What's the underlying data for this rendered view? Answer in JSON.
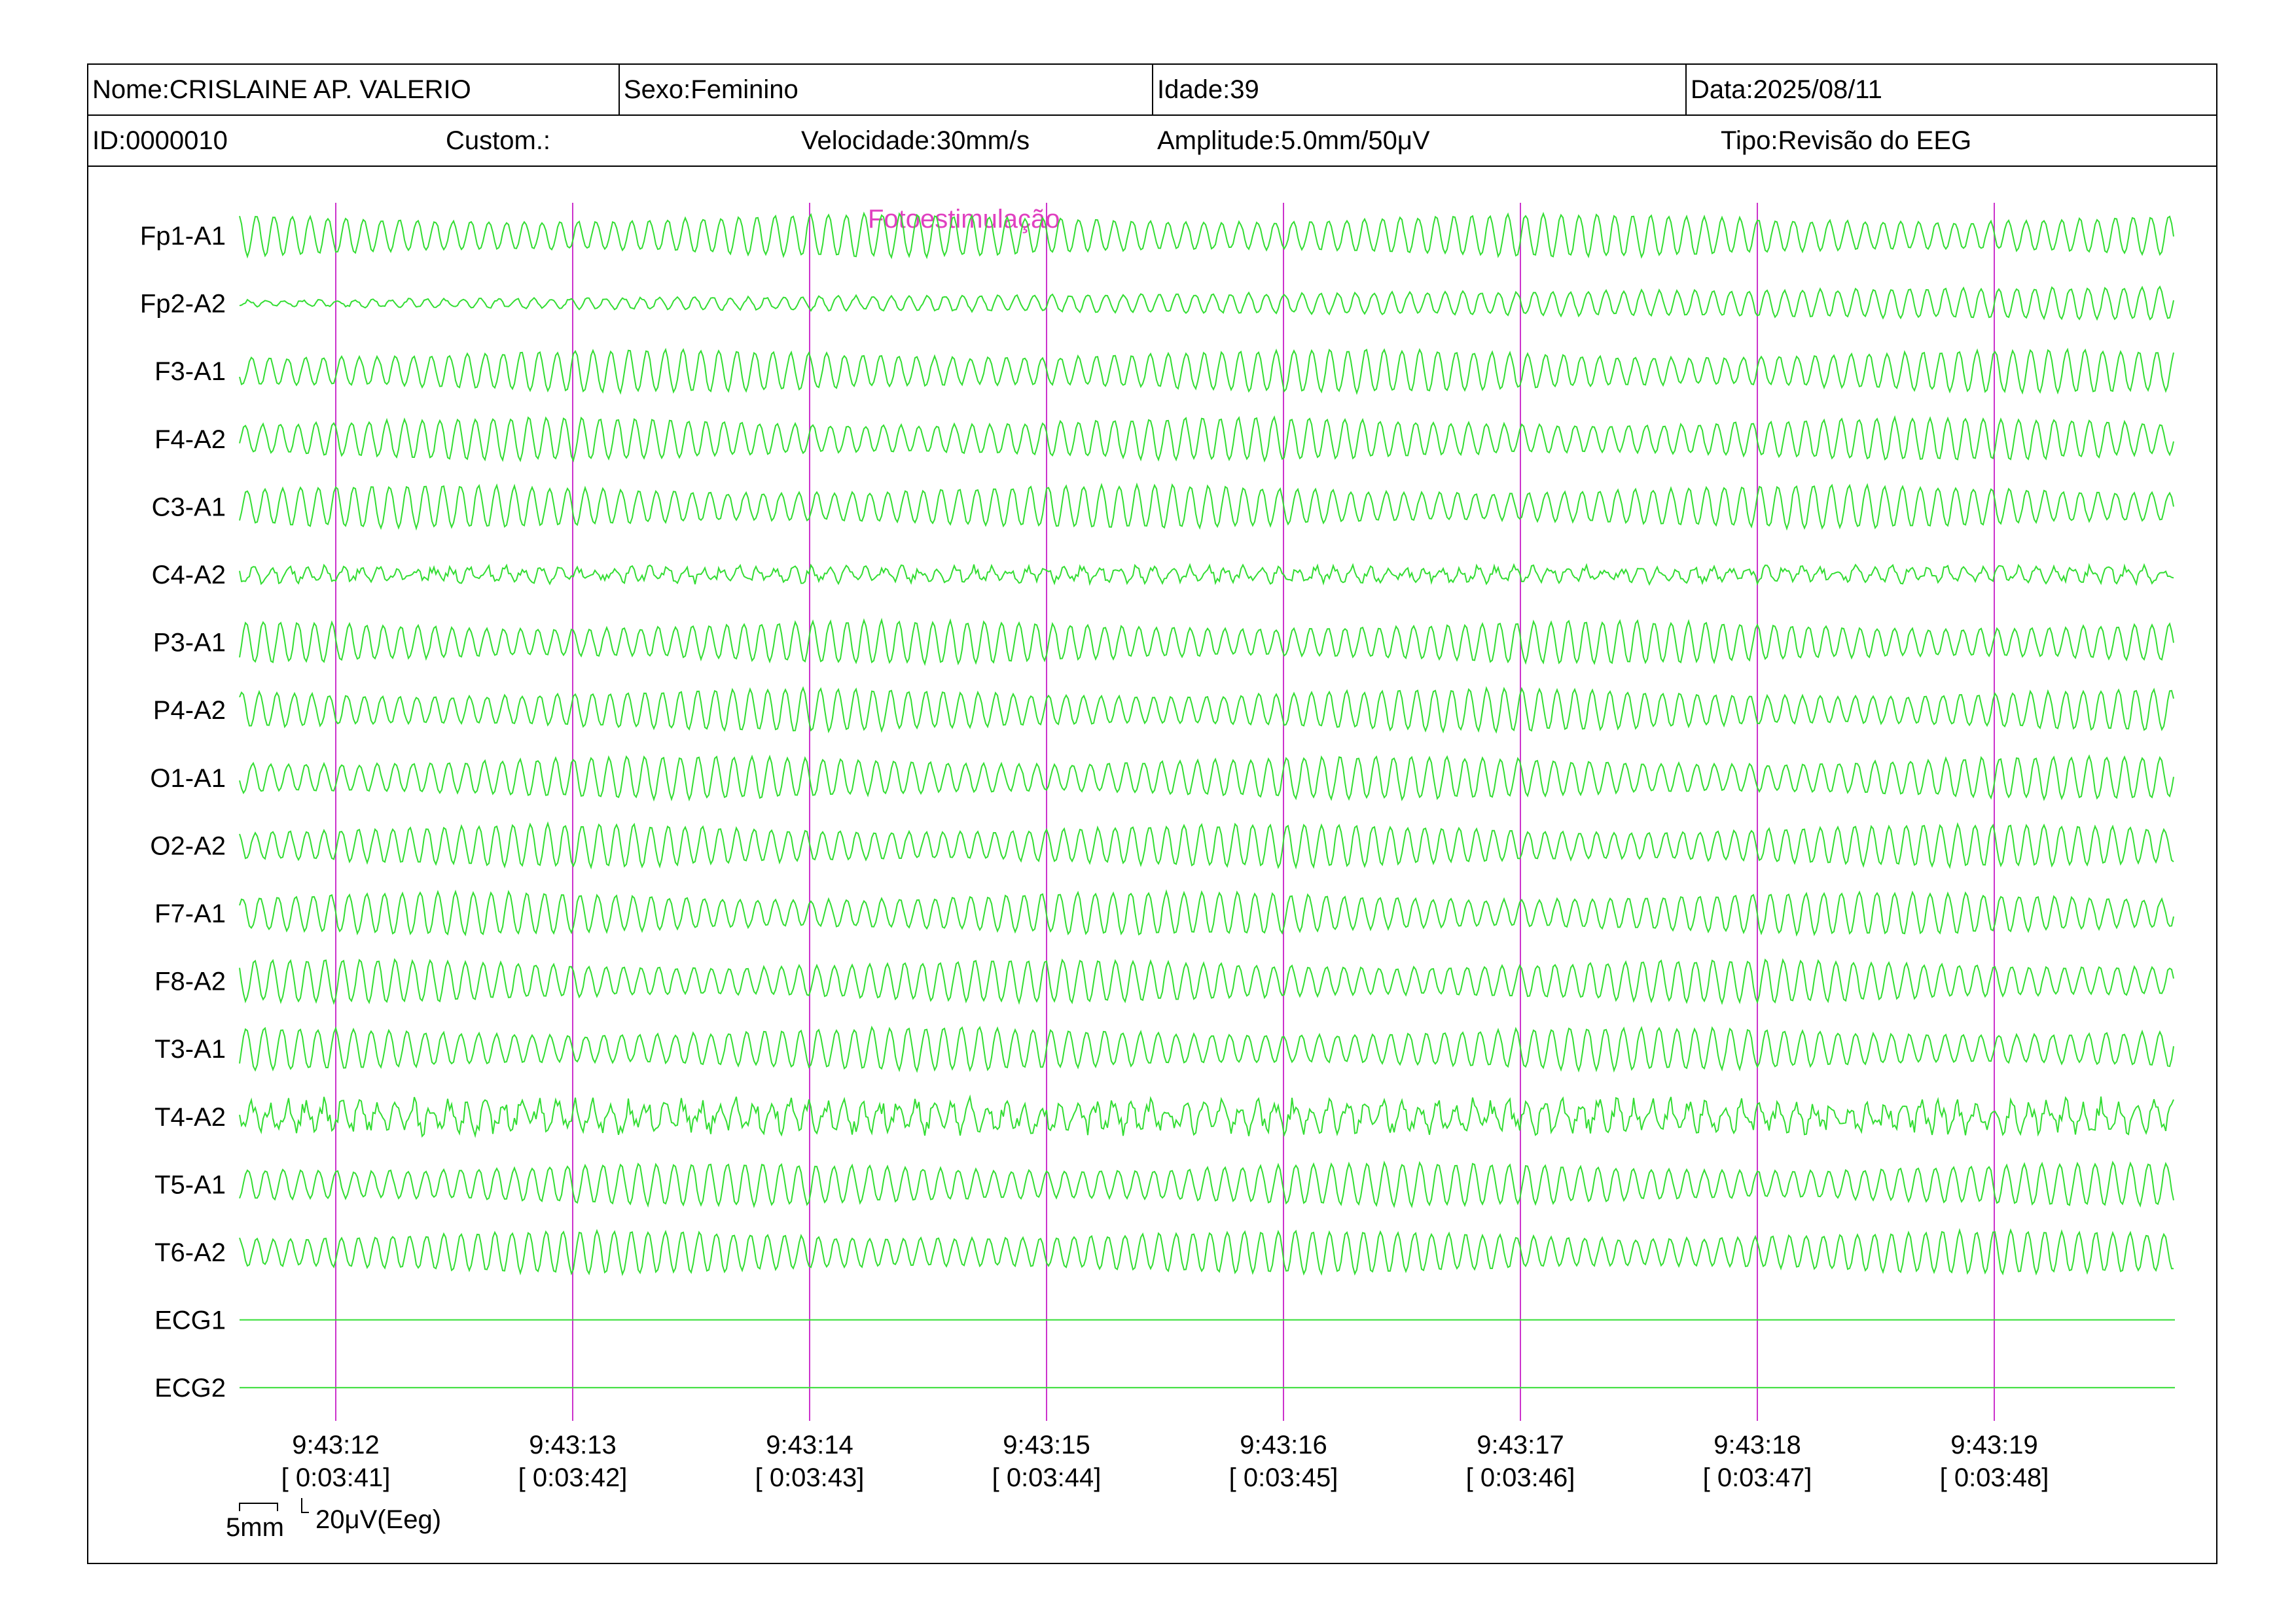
{
  "header": {
    "name": "Nome:CRISLAINE AP. VALERIO",
    "sex": "Sexo:Feminino",
    "age": "Idade:39",
    "date": "Data:2025/08/11",
    "id": "ID:0000010",
    "custom": "Custom.:",
    "speed": "Velocidade:30mm/s",
    "amplitude": "Amplitude:5.0mm/50μV",
    "type": "Tipo:Revisão do EEG"
  },
  "chart_data": {
    "type": "line",
    "title": "",
    "annotation": "Fotoestimulação",
    "channels": [
      "Fp1-A1",
      "Fp2-A2",
      "F3-A1",
      "F4-A2",
      "C3-A1",
      "C4-A2",
      "P3-A1",
      "P4-A2",
      "O1-A1",
      "O2-A2",
      "F7-A1",
      "F8-A2",
      "T3-A1",
      "T4-A2",
      "T5-A1",
      "T6-A2",
      "ECG1",
      "ECG2"
    ],
    "time_markers": [
      {
        "clock": "9:43:12",
        "elapsed": "[ 0:03:41]"
      },
      {
        "clock": "9:43:13",
        "elapsed": "[ 0:03:42]"
      },
      {
        "clock": "9:43:14",
        "elapsed": "[ 0:03:43]"
      },
      {
        "clock": "9:43:15",
        "elapsed": "[ 0:03:44]"
      },
      {
        "clock": "9:43:16",
        "elapsed": "[ 0:03:45]"
      },
      {
        "clock": "9:43:17",
        "elapsed": "[ 0:03:46]"
      },
      {
        "clock": "9:43:18",
        "elapsed": "[ 0:03:47]"
      },
      {
        "clock": "9:43:19",
        "elapsed": "[ 0:03:48]"
      }
    ],
    "scale_time_label": "5mm",
    "scale_amp_label": "20μV(Eeg)",
    "colors": {
      "trace": "#33dd33",
      "marker": "#cc33cc",
      "annotation": "#e040c0"
    }
  }
}
